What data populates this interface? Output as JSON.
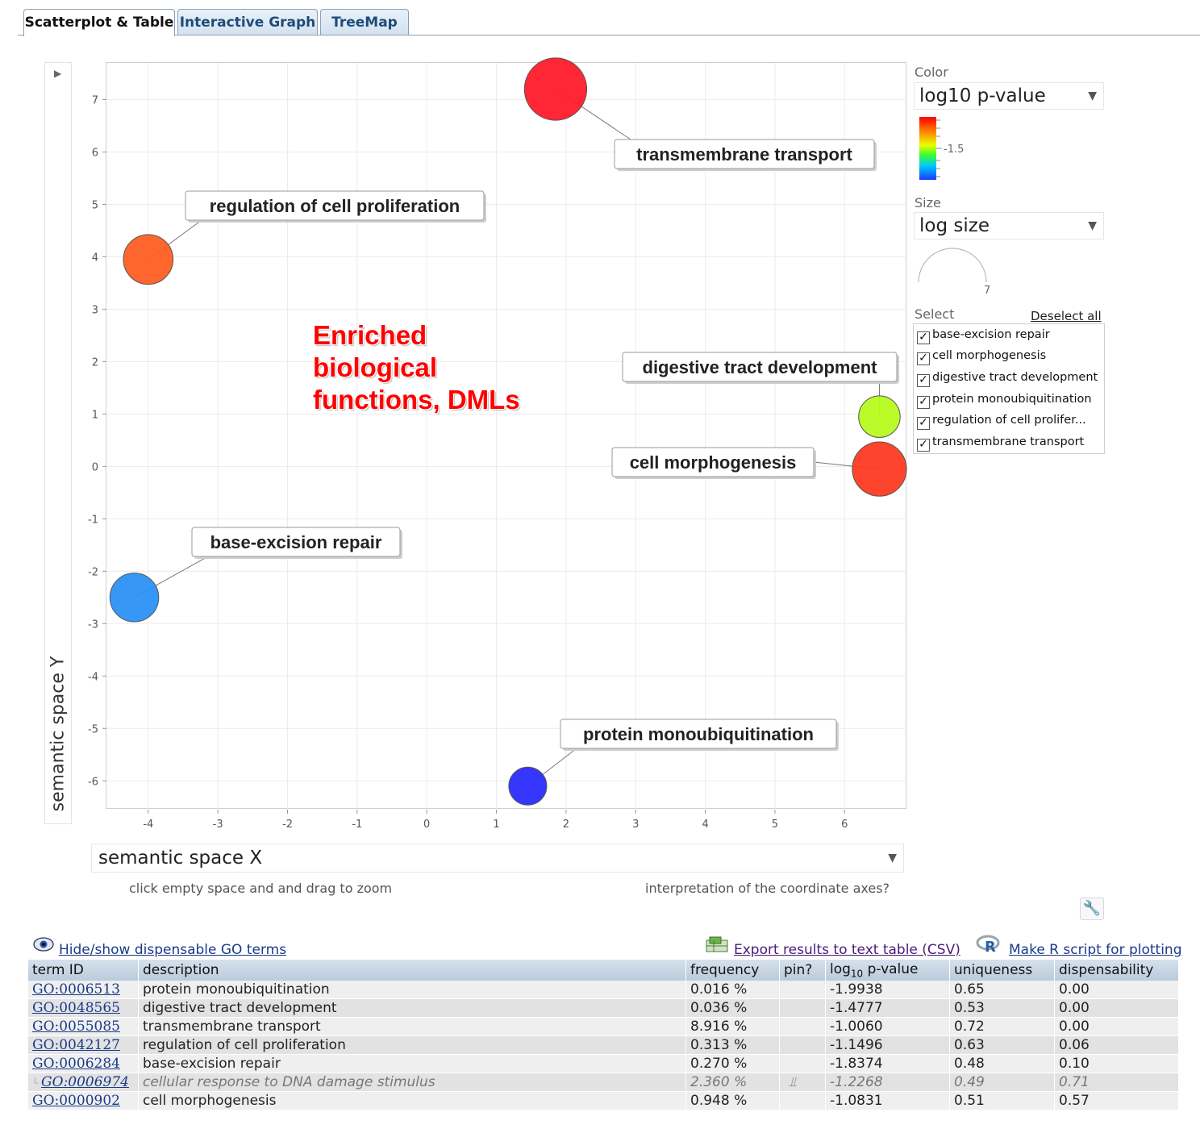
{
  "tabs": [
    {
      "label": "Scatterplot & Table",
      "active": true
    },
    {
      "label": "Interactive Graph",
      "active": false
    },
    {
      "label": "TreeMap",
      "active": false
    }
  ],
  "plot": {
    "annotation": [
      "Enriched",
      "biological",
      "functions, DMLs"
    ],
    "y_axis_label": "semantic space Y",
    "x_axis_select": "semantic space X",
    "hint_zoom": "click empty space and and drag to zoom",
    "hint_axes": "interpretation of the coordinate axes?"
  },
  "chart_data": {
    "type": "scatter",
    "xlim": [
      -4.6,
      6.9
    ],
    "ylim": [
      -6.55,
      7.7
    ],
    "xticks": [
      -4,
      -3,
      -2,
      -1,
      0,
      1,
      2,
      3,
      4,
      5,
      6
    ],
    "yticks": [
      7,
      6,
      5,
      4,
      3,
      2,
      1,
      0,
      -1,
      -2,
      -3,
      -4,
      -5,
      -6
    ],
    "grid": true,
    "points": [
      {
        "label": "transmembrane transport",
        "x": 1.85,
        "y": 7.2,
        "log_size": 6.9,
        "color": "#ff1a2a"
      },
      {
        "label": "regulation of cell proliferation",
        "x": -4.0,
        "y": 3.95,
        "log_size": 5.5,
        "color": "#ff5e22"
      },
      {
        "label": "digestive tract development",
        "x": 6.5,
        "y": 0.95,
        "log_size": 4.6,
        "color": "#b6fb1e"
      },
      {
        "label": "cell morphogenesis",
        "x": 6.5,
        "y": -0.05,
        "log_size": 6.0,
        "color": "#ff3a22"
      },
      {
        "label": "base-excision repair",
        "x": -4.2,
        "y": -2.5,
        "log_size": 5.4,
        "color": "#2b91f7"
      },
      {
        "label": "protein monoubiquitination",
        "x": 1.45,
        "y": -6.1,
        "log_size": 4.2,
        "color": "#2a2cff"
      }
    ]
  },
  "panel": {
    "color_label": "Color",
    "color_select": "log10 p-value",
    "color_scale_tick": "-1.5",
    "size_label": "Size",
    "size_select": "log size",
    "size_legend_value": "7",
    "select_label": "Select",
    "deselect_all": "Deselect all",
    "select_items": [
      {
        "label": "base-excision repair",
        "checked": true
      },
      {
        "label": "cell morphogenesis",
        "checked": true
      },
      {
        "label": "digestive tract development",
        "checked": true
      },
      {
        "label": "protein monoubiquitination",
        "checked": true
      },
      {
        "label": "regulation of cell prolifer...",
        "checked": true
      },
      {
        "label": "transmembrane transport",
        "checked": true
      }
    ]
  },
  "links": {
    "hide_show": "Hide/show dispensable GO terms",
    "export_csv": "Export results to text table (CSV)",
    "r_script": "Make R script for plotting"
  },
  "table": {
    "headers": [
      "term ID",
      "description",
      "frequency",
      "pin?",
      "log10 p-value",
      "uniqueness",
      "dispensability"
    ],
    "rows": [
      {
        "id": "GO:0006513",
        "desc": "protein monoubiquitination",
        "freq": "0.016 %",
        "pin": "",
        "p": "-1.9938",
        "uniq": "0.65",
        "disp": "0.00",
        "dispensable": false
      },
      {
        "id": "GO:0048565",
        "desc": "digestive tract development",
        "freq": "0.036 %",
        "pin": "",
        "p": "-1.4777",
        "uniq": "0.53",
        "disp": "0.00",
        "dispensable": false
      },
      {
        "id": "GO:0055085",
        "desc": "transmembrane transport",
        "freq": "8.916 %",
        "pin": "",
        "p": "-1.0060",
        "uniq": "0.72",
        "disp": "0.00",
        "dispensable": false
      },
      {
        "id": "GO:0042127",
        "desc": "regulation of cell proliferation",
        "freq": "0.313 %",
        "pin": "",
        "p": "-1.1496",
        "uniq": "0.63",
        "disp": "0.06",
        "dispensable": false
      },
      {
        "id": "GO:0006284",
        "desc": "base-excision repair",
        "freq": "0.270 %",
        "pin": "",
        "p": "-1.8374",
        "uniq": "0.48",
        "disp": "0.10",
        "dispensable": false
      },
      {
        "id": "GO:0006974",
        "desc": "cellular response to DNA damage stimulus",
        "freq": "2.360 %",
        "pin": "pin-icon",
        "p": "-1.2268",
        "uniq": "0.49",
        "disp": "0.71",
        "dispensable": true
      },
      {
        "id": "GO:0000902",
        "desc": "cell morphogenesis",
        "freq": "0.948 %",
        "pin": "",
        "p": "-1.0831",
        "uniq": "0.51",
        "disp": "0.57",
        "dispensable": false
      }
    ]
  }
}
